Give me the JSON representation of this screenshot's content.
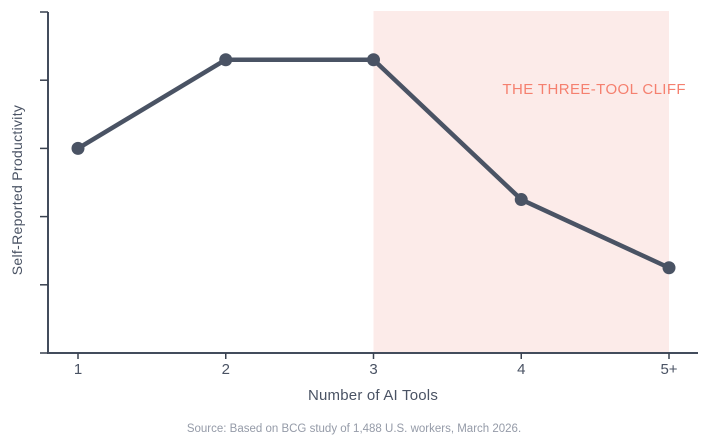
{
  "colors": {
    "background": "#ffffff",
    "line": "#4a5364",
    "axis": "#434c5c",
    "tick": "#39414f",
    "tick_label": "#4a5364",
    "shade": "#fcebe9",
    "annotation": "#f5806f",
    "source_text": "#959ba8"
  },
  "chart_data": {
    "type": "line",
    "categories": [
      "1",
      "2",
      "3",
      "4",
      "5+"
    ],
    "values": [
      60,
      86,
      86,
      45,
      25
    ],
    "title": "",
    "xlabel": "Number of AI Tools",
    "ylabel": "Self-Reported Productivity",
    "ylim": [
      0,
      100
    ],
    "y_ticks": [
      0,
      20,
      40,
      60,
      80,
      100
    ],
    "y_tick_labels_visible": false,
    "grid": false,
    "legend": "none",
    "marker": "circle",
    "shaded_region": {
      "from_category": "3",
      "to_category": "5+",
      "label": "THE THREE-TOOL CLIFF"
    },
    "source_note": "Source: Based on BCG study of 1,488 U.S. workers, March 2026."
  }
}
